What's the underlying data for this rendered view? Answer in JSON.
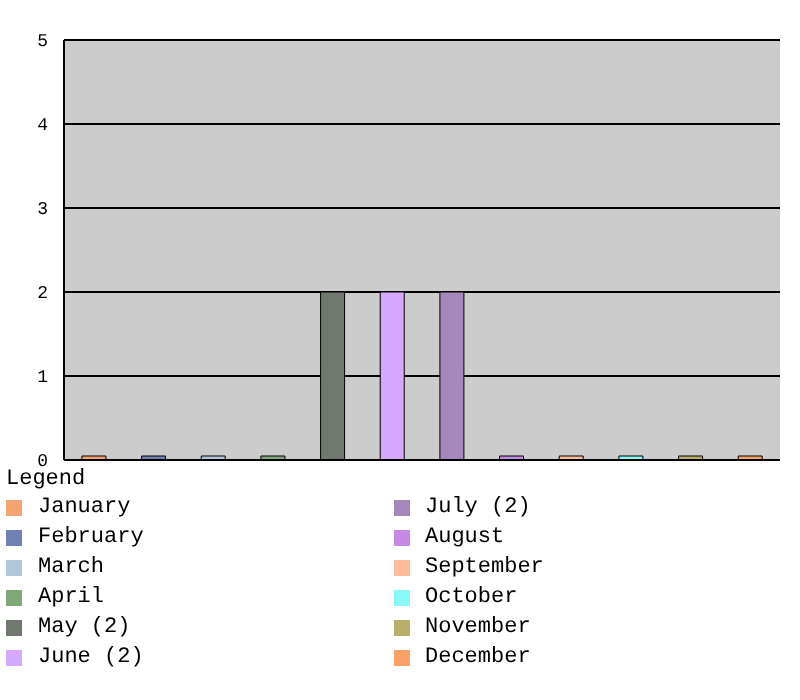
{
  "chart_data": {
    "type": "bar",
    "legend_title": "Legend",
    "categories": [
      null,
      null,
      null,
      null,
      null,
      null,
      null,
      null,
      null,
      null,
      null,
      null
    ],
    "series": [
      {
        "name": "January",
        "color": "#f5a470",
        "values": [
          0,
          null,
          null,
          null,
          null,
          null,
          null,
          null,
          null,
          null,
          null,
          null
        ]
      },
      {
        "name": "February",
        "color": "#7080b0",
        "values": [
          null,
          0,
          null,
          null,
          null,
          null,
          null,
          null,
          null,
          null,
          null,
          null
        ]
      },
      {
        "name": "March",
        "color": "#b0c8dc",
        "values": [
          null,
          null,
          0,
          null,
          null,
          null,
          null,
          null,
          null,
          null,
          null,
          null
        ]
      },
      {
        "name": "April",
        "color": "#80a878",
        "values": [
          null,
          null,
          null,
          0,
          null,
          null,
          null,
          null,
          null,
          null,
          null,
          null
        ]
      },
      {
        "name": "May (2)",
        "color": "#707870",
        "values": [
          null,
          null,
          null,
          null,
          2,
          null,
          null,
          null,
          null,
          null,
          null,
          null
        ]
      },
      {
        "name": "June (2)",
        "color": "#d4a8fc",
        "values": [
          null,
          null,
          null,
          null,
          null,
          2,
          null,
          null,
          null,
          null,
          null,
          null
        ]
      },
      {
        "name": "July (2)",
        "color": "#a488bc",
        "values": [
          null,
          null,
          null,
          null,
          null,
          null,
          2,
          null,
          null,
          null,
          null,
          null
        ]
      },
      {
        "name": "August",
        "color": "#c888e8",
        "values": [
          null,
          null,
          null,
          null,
          null,
          null,
          null,
          0,
          null,
          null,
          null,
          null
        ]
      },
      {
        "name": "September",
        "color": "#ffbc98",
        "values": [
          null,
          null,
          null,
          null,
          null,
          null,
          null,
          null,
          0,
          null,
          null,
          null
        ]
      },
      {
        "name": "October",
        "color": "#88f8f8",
        "values": [
          null,
          null,
          null,
          null,
          null,
          null,
          null,
          null,
          null,
          0,
          null,
          null
        ]
      },
      {
        "name": "November",
        "color": "#b8b068",
        "values": [
          null,
          null,
          null,
          null,
          null,
          null,
          null,
          null,
          null,
          null,
          0,
          null
        ]
      },
      {
        "name": "December",
        "color": "#f8a068",
        "values": [
          null,
          null,
          null,
          null,
          null,
          null,
          null,
          null,
          null,
          null,
          null,
          0
        ]
      }
    ],
    "stacked": true,
    "ylim": [
      0,
      5
    ],
    "yticks": [
      0,
      1,
      2,
      3,
      4,
      5
    ],
    "grid": "y",
    "legend": "bottom"
  }
}
